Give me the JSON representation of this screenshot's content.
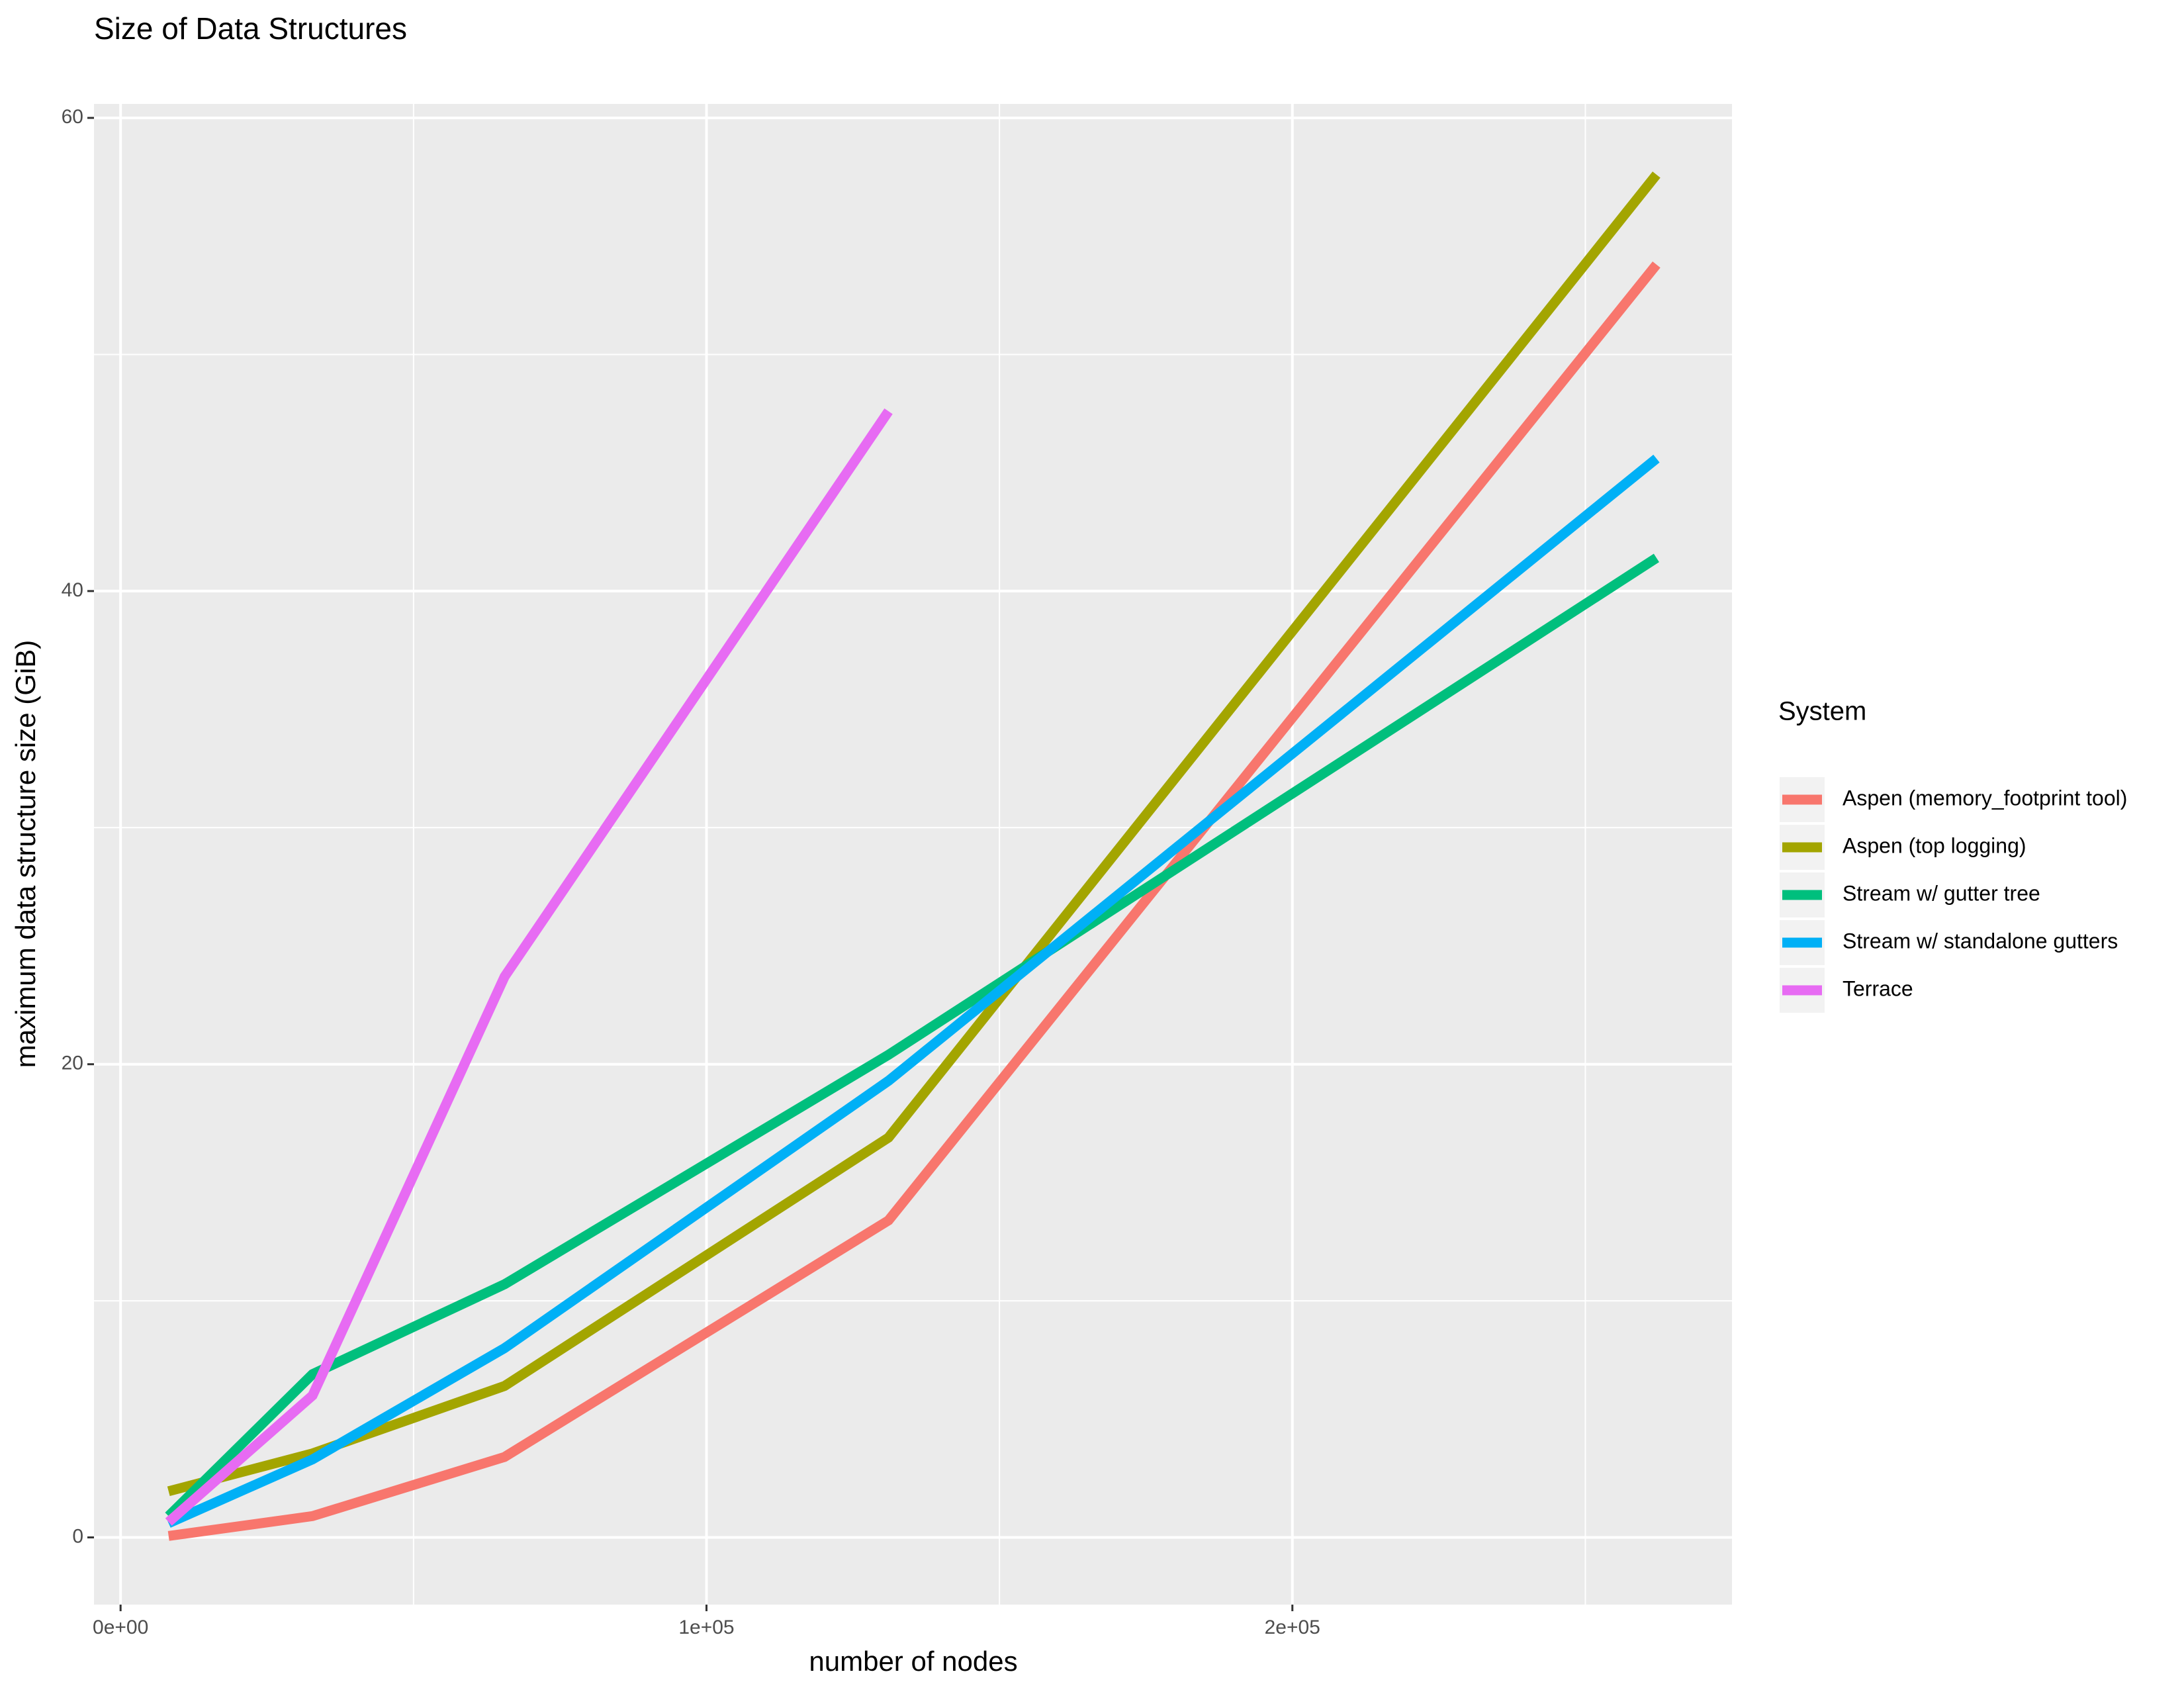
{
  "chart_data": {
    "type": "line",
    "title": "Size of Data Structures",
    "x_label": "number of nodes",
    "y_label": "maximum data structure size (GiB)",
    "legend_title": "System",
    "legend_position": "right",
    "x": [
      8192,
      32768,
      65536,
      131072,
      262144
    ],
    "series": [
      {
        "name": "Aspen (memory_footprint tool)",
        "color": "#f8766d",
        "values": [
          0.06,
          0.9,
          3.4,
          13.4,
          53.8
        ]
      },
      {
        "name": "Aspen (top logging)",
        "color": "#a3a500",
        "values": [
          1.95,
          3.55,
          6.4,
          16.9,
          57.6
        ]
      },
      {
        "name": "Stream w/ gutter tree",
        "color": "#00bf7d",
        "values": [
          0.9,
          6.9,
          10.7,
          20.4,
          41.4
        ]
      },
      {
        "name": "Stream w/ standalone gutters",
        "color": "#00b0f6",
        "values": [
          0.6,
          3.3,
          8.0,
          19.3,
          45.6
        ]
      },
      {
        "name": "Terrace",
        "color": "#e76bf3",
        "values": [
          0.65,
          6.0,
          23.7,
          47.6,
          null
        ]
      }
    ],
    "xlim": [
      -4540,
      275030
    ],
    "ylim": [
      -2.84,
      60.59
    ],
    "xticks": [
      {
        "value": 0,
        "label": "0e+00"
      },
      {
        "value": 100000,
        "label": "1e+05"
      },
      {
        "value": 200000,
        "label": "2e+05"
      }
    ],
    "yticks": [
      0,
      20,
      40,
      60
    ],
    "x_minor_grid": [
      50000,
      150000,
      250000
    ],
    "y_minor_grid": [
      10,
      30,
      50
    ],
    "grid": true
  }
}
